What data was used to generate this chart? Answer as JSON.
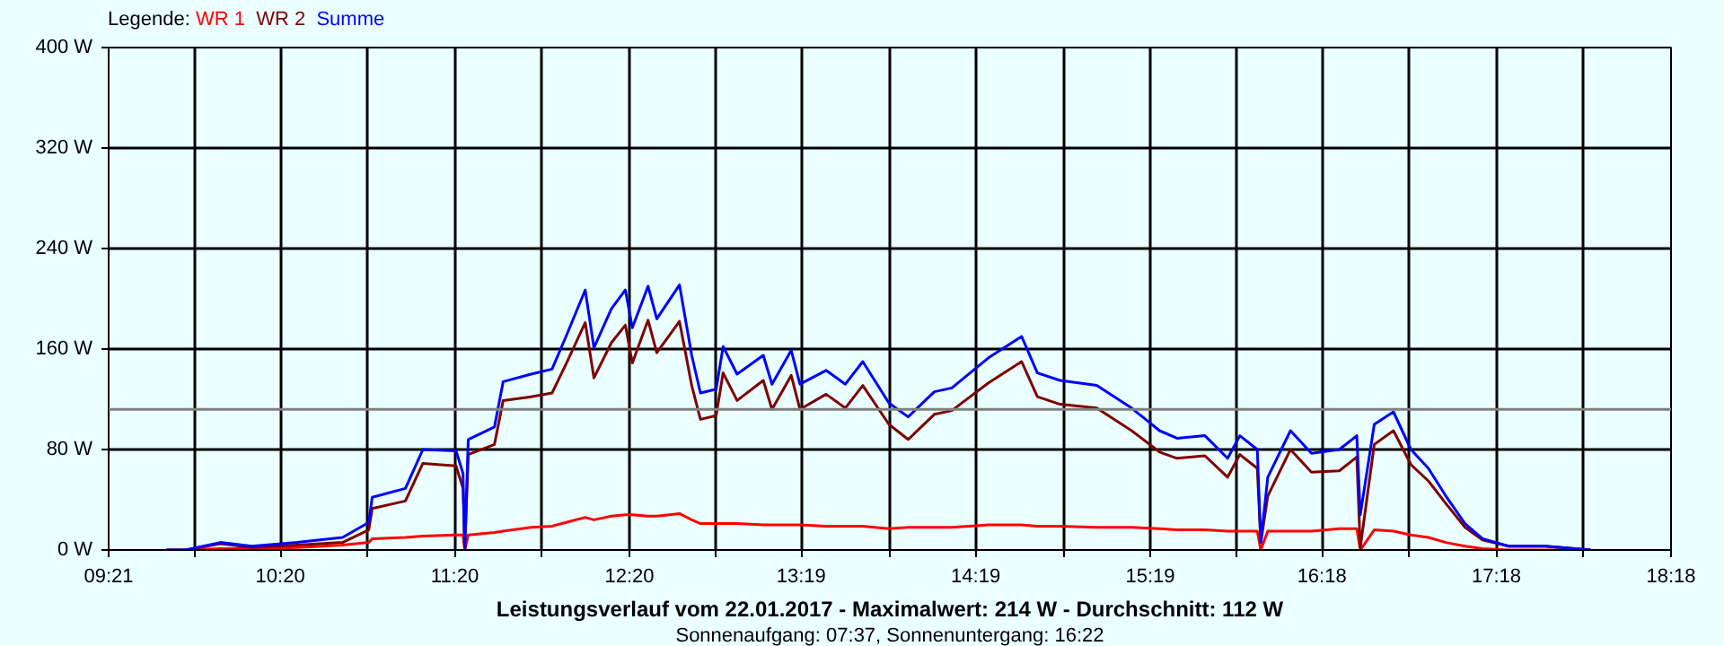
{
  "chart_data": {
    "type": "line",
    "title": "Leistungsverlauf vom 22.01.2017 - Maximalwert: 214 W - Durchschnitt: 112 W",
    "subtitle": "Sonnenaufgang: 07:37, Sonnenuntergang: 16:22",
    "legend_title": "Legende:",
    "grid": true,
    "marker": "none",
    "line_style": "solid",
    "x": [
      9.68,
      9.79,
      9.99,
      10.17,
      10.43,
      10.69,
      10.84,
      10.86,
      11.05,
      11.15,
      11.34,
      11.38,
      11.39,
      11.41,
      11.56,
      11.61,
      11.77,
      11.89,
      11.97,
      12.08,
      12.13,
      12.23,
      12.31,
      12.35,
      12.44,
      12.49,
      12.62,
      12.69,
      12.74,
      12.83,
      12.87,
      12.95,
      13.1,
      13.15,
      13.26,
      13.31,
      13.46,
      13.57,
      13.67,
      13.82,
      13.93,
      14.08,
      14.18,
      14.39,
      14.58,
      14.67,
      14.8,
      15.01,
      15.21,
      15.37,
      15.47,
      15.63,
      15.76,
      15.83,
      15.93,
      15.95,
      15.99,
      16.12,
      16.24,
      16.4,
      16.5,
      16.52,
      16.6,
      16.71,
      16.81,
      16.91,
      17.01,
      17.12,
      17.22,
      17.37,
      17.58,
      17.84
    ],
    "series": [
      {
        "name": "WR 1",
        "color": "#ff0000",
        "values": [
          0,
          0,
          1,
          1,
          2,
          4,
          6,
          9,
          10,
          11,
          12,
          12,
          0,
          12,
          14,
          15,
          18,
          19,
          22,
          26,
          24,
          27,
          28,
          28,
          27,
          27,
          29,
          24,
          21,
          21,
          21,
          21,
          20,
          20,
          20,
          20,
          19,
          19,
          19,
          17,
          18,
          18,
          18,
          20,
          20,
          19,
          19,
          18,
          18,
          17,
          16,
          16,
          15,
          15,
          15,
          0,
          15,
          15,
          15,
          17,
          17,
          0,
          16,
          15,
          12,
          10,
          6,
          3,
          1,
          0,
          0,
          0
        ]
      },
      {
        "name": "WR 2",
        "color": "#800000",
        "values": [
          0,
          0,
          5,
          2,
          4,
          6,
          16,
          33,
          39,
          69,
          67,
          49,
          0,
          76,
          84,
          119,
          122,
          125,
          148,
          181,
          137,
          165,
          179,
          149,
          183,
          157,
          182,
          131,
          104,
          107,
          141,
          119,
          135,
          112,
          139,
          112,
          124,
          113,
          131,
          100,
          88,
          108,
          111,
          133,
          150,
          122,
          116,
          113,
          95,
          78,
          73,
          75,
          58,
          76,
          65,
          6,
          43,
          80,
          62,
          63,
          74,
          2,
          84,
          95,
          68,
          55,
          37,
          18,
          8,
          3,
          3,
          0
        ]
      },
      {
        "name": "Summe",
        "color": "#0000ff",
        "values": [
          0,
          0,
          6,
          3,
          6,
          10,
          22,
          42,
          49,
          80,
          79,
          61,
          0,
          88,
          98,
          134,
          140,
          144,
          170,
          207,
          161,
          192,
          207,
          177,
          210,
          184,
          211,
          155,
          125,
          128,
          162,
          140,
          155,
          132,
          159,
          132,
          143,
          132,
          150,
          117,
          106,
          126,
          129,
          153,
          170,
          141,
          135,
          131,
          113,
          95,
          89,
          91,
          73,
          91,
          80,
          6,
          58,
          95,
          77,
          80,
          91,
          28,
          100,
          110,
          80,
          65,
          43,
          21,
          9,
          3,
          3,
          0
        ]
      }
    ],
    "xlim": [
      9.35,
      18.3
    ],
    "xticks": [
      {
        "value": 9.35,
        "label": "09:21"
      },
      {
        "value": 9.84,
        "label": null
      },
      {
        "value": 10.333,
        "label": "10:20"
      },
      {
        "value": 10.83,
        "label": null
      },
      {
        "value": 11.333,
        "label": "11:20"
      },
      {
        "value": 11.83,
        "label": null
      },
      {
        "value": 12.333,
        "label": "12:20"
      },
      {
        "value": 12.83,
        "label": null
      },
      {
        "value": 13.317,
        "label": "13:19"
      },
      {
        "value": 13.82,
        "label": null
      },
      {
        "value": 14.317,
        "label": "14:19"
      },
      {
        "value": 14.82,
        "label": null
      },
      {
        "value": 15.317,
        "label": "15:19"
      },
      {
        "value": 15.81,
        "label": null
      },
      {
        "value": 16.3,
        "label": "16:18"
      },
      {
        "value": 16.8,
        "label": null
      },
      {
        "value": 17.3,
        "label": "17:18"
      },
      {
        "value": 17.8,
        "label": null
      },
      {
        "value": 18.3,
        "label": "18:18"
      }
    ],
    "ylim": [
      0,
      400
    ],
    "yticks": [
      {
        "value": 0,
        "label": "0 W"
      },
      {
        "value": 80,
        "label": "80 W"
      },
      {
        "value": 160,
        "label": "160 W"
      },
      {
        "value": 240,
        "label": "240 W"
      },
      {
        "value": 320,
        "label": "320 W"
      },
      {
        "value": 400,
        "label": "400 W"
      }
    ],
    "ref_lines": [
      {
        "axis": "y",
        "value": 112,
        "color": "#808080"
      }
    ]
  }
}
